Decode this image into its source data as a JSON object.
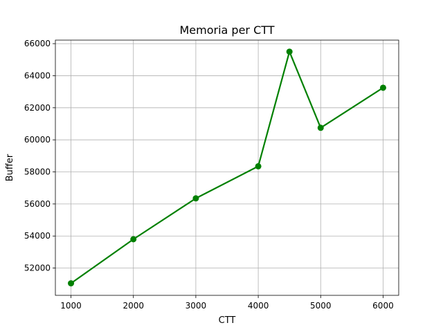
{
  "chart_data": {
    "type": "line",
    "title": "Memoria per CTT",
    "xlabel": "CTT",
    "ylabel": "Buffer",
    "x": [
      1000,
      2000,
      3000,
      4000,
      4500,
      5000,
      6000
    ],
    "series": [
      {
        "values": [
          51050,
          53800,
          56350,
          58350,
          65500,
          60750,
          63250
        ],
        "color": "#008000",
        "marker": "circle"
      }
    ],
    "xlim": [
      750,
      6250
    ],
    "ylim": [
      50300,
      66220
    ],
    "xticks": [
      1000,
      2000,
      3000,
      4000,
      5000,
      6000
    ],
    "yticks": [
      52000,
      54000,
      56000,
      58000,
      60000,
      62000,
      64000,
      66000
    ],
    "grid": true,
    "legend": "none"
  }
}
